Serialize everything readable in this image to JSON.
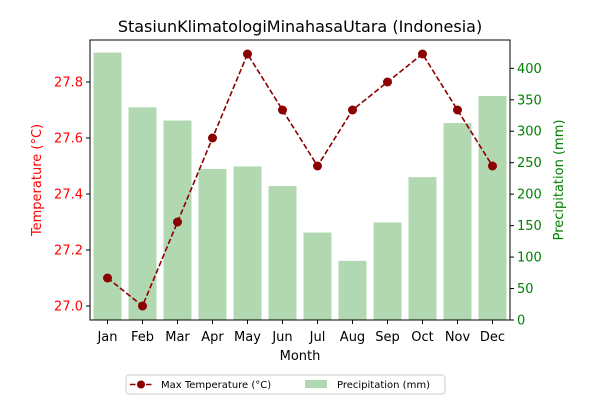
{
  "chart_data": {
    "type": "bar+line",
    "title": "StasiunKlimatologiMinahasaUtara (Indonesia)",
    "xlabel": "Month",
    "categories": [
      "Jan",
      "Feb",
      "Mar",
      "Apr",
      "May",
      "Jun",
      "Jul",
      "Aug",
      "Sep",
      "Oct",
      "Nov",
      "Dec"
    ],
    "left_axis": {
      "label": "Temperature (°C)",
      "ylim": [
        26.95,
        27.95
      ],
      "ticks": [
        "27.0",
        "27.2",
        "27.4",
        "27.6",
        "27.8"
      ],
      "color": "#ff0000"
    },
    "right_axis": {
      "label": "Precipitation (mm)",
      "ylim": [
        0,
        445
      ],
      "ticks": [
        "0",
        "50",
        "100",
        "150",
        "200",
        "250",
        "300",
        "350",
        "400"
      ],
      "color": "#008000"
    },
    "series": [
      {
        "name": "Max Temperature (°C)",
        "kind": "line",
        "axis": "left",
        "color": "#8b0000",
        "values": [
          27.1,
          27.0,
          27.3,
          27.6,
          27.9,
          27.7,
          27.5,
          27.7,
          27.8,
          27.9,
          27.7,
          27.5
        ]
      },
      {
        "name": "Precipitation (mm)",
        "kind": "bar",
        "axis": "right",
        "color": "#b1d8b1",
        "values": [
          425,
          338,
          317,
          240,
          244,
          213,
          139,
          94,
          155,
          227,
          313,
          356
        ]
      }
    ],
    "legend_position": "bottom-center",
    "grid": false
  }
}
